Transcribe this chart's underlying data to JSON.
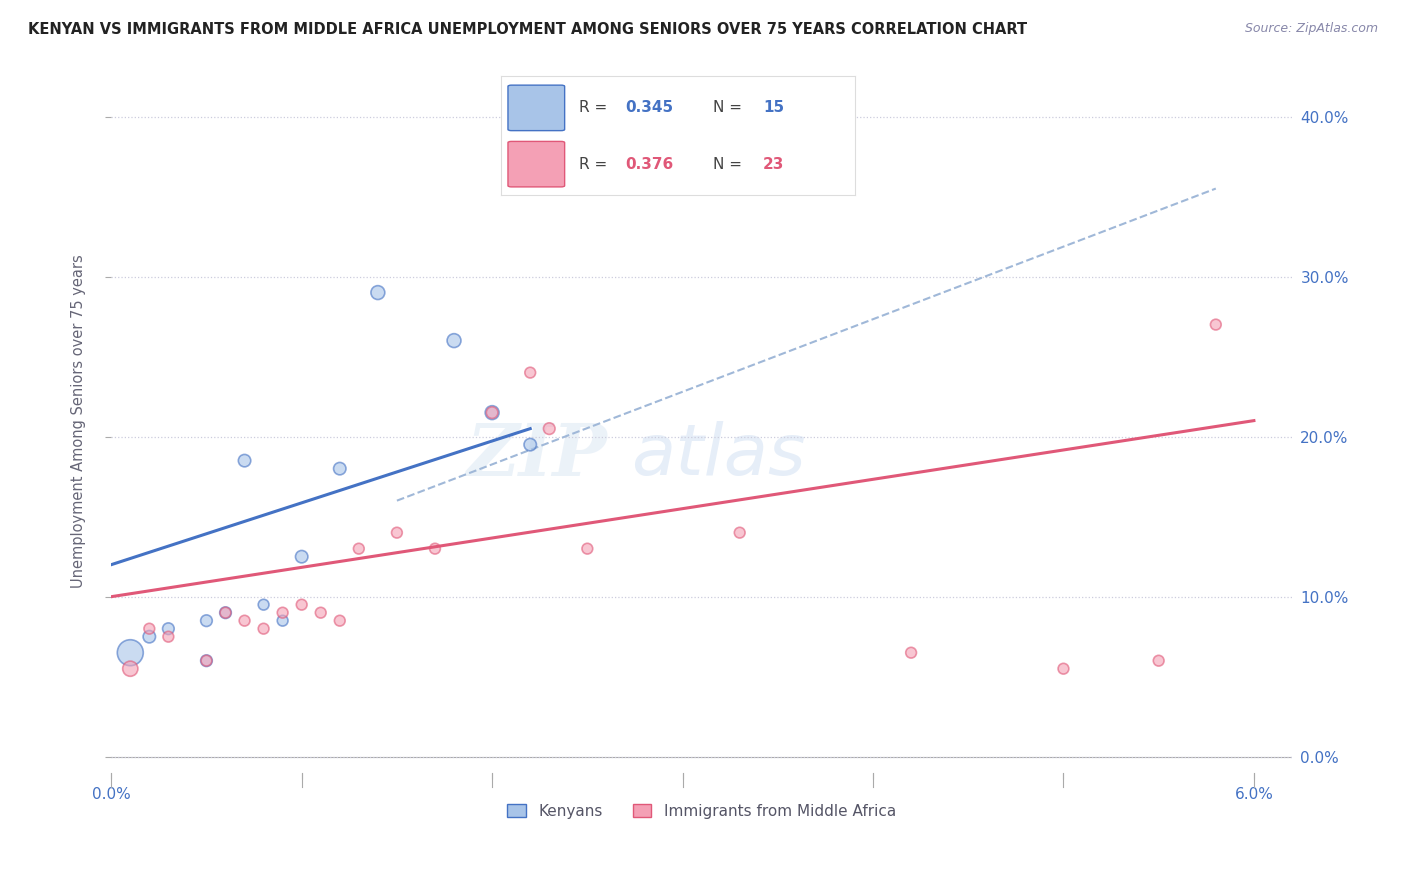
{
  "title": "KENYAN VS IMMIGRANTS FROM MIDDLE AFRICA UNEMPLOYMENT AMONG SENIORS OVER 75 YEARS CORRELATION CHART",
  "source": "Source: ZipAtlas.com",
  "ylabel": "Unemployment Among Seniors over 75 years",
  "legend_r1": "0.345",
  "legend_n1": "15",
  "legend_r2": "0.376",
  "legend_n2": "23",
  "kenyan_color": "#a8c4e8",
  "immigrant_color": "#f4a0b5",
  "line_color_kenyan": "#4472c4",
  "line_color_immigrant": "#e05878",
  "dashed_line_color": "#a0b8d8",
  "watermark_zip": "ZIP",
  "watermark_atlas": "atlas",
  "xlim": [
    0.0,
    0.06
  ],
  "ylim": [
    0.0,
    0.42
  ],
  "ytick_vals": [
    0.0,
    0.1,
    0.2,
    0.3,
    0.4
  ],
  "kenyan_x": [
    0.001,
    0.002,
    0.003,
    0.005,
    0.005,
    0.006,
    0.007,
    0.008,
    0.009,
    0.01,
    0.012,
    0.014,
    0.018,
    0.02,
    0.022
  ],
  "kenyan_y": [
    0.065,
    0.075,
    0.08,
    0.06,
    0.085,
    0.09,
    0.185,
    0.095,
    0.085,
    0.125,
    0.18,
    0.29,
    0.26,
    0.215,
    0.195
  ],
  "kenyan_size": [
    350,
    80,
    70,
    70,
    70,
    70,
    80,
    60,
    60,
    80,
    80,
    100,
    100,
    100,
    80
  ],
  "immigrant_x": [
    0.001,
    0.002,
    0.003,
    0.005,
    0.006,
    0.007,
    0.008,
    0.009,
    0.01,
    0.011,
    0.012,
    0.013,
    0.015,
    0.017,
    0.02,
    0.022,
    0.023,
    0.025,
    0.033,
    0.042,
    0.05,
    0.055,
    0.058
  ],
  "immigrant_y": [
    0.055,
    0.08,
    0.075,
    0.06,
    0.09,
    0.085,
    0.08,
    0.09,
    0.095,
    0.09,
    0.085,
    0.13,
    0.14,
    0.13,
    0.215,
    0.24,
    0.205,
    0.13,
    0.14,
    0.065,
    0.055,
    0.06,
    0.27
  ],
  "immigrant_size": [
    120,
    60,
    60,
    60,
    60,
    60,
    60,
    60,
    60,
    60,
    60,
    60,
    60,
    60,
    70,
    60,
    70,
    60,
    60,
    60,
    60,
    60,
    60
  ],
  "kenyan_line_x": [
    0.0,
    0.022
  ],
  "kenyan_line_y": [
    0.12,
    0.205
  ],
  "immigrant_line_x": [
    0.0,
    0.06
  ],
  "immigrant_line_y": [
    0.1,
    0.21
  ],
  "dashed_line_x": [
    0.015,
    0.058
  ],
  "dashed_line_y": [
    0.16,
    0.355
  ]
}
